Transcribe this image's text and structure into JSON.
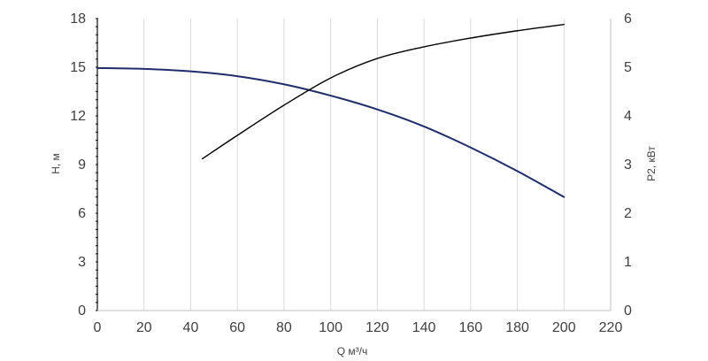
{
  "chart_data": {
    "type": "line",
    "xlabel": "Q м³/ч",
    "ylabel_left": "H, м",
    "ylabel_right": "P2, кВт",
    "xlim": [
      0,
      220
    ],
    "ylim_left": [
      0,
      18
    ],
    "ylim_right": [
      0,
      6
    ],
    "x_ticks": [
      "0",
      "20",
      "40",
      "60",
      "80",
      "100",
      "120",
      "140",
      "160",
      "180",
      "200",
      "220"
    ],
    "y_left_ticks": [
      "0",
      "3",
      "6",
      "9",
      "12",
      "15",
      "18"
    ],
    "y_right_ticks": [
      "0",
      "1",
      "2",
      "3",
      "4",
      "5",
      "6"
    ],
    "grid": "vertical",
    "series": [
      {
        "axis": "left",
        "color": "#1f2d6b",
        "x": [
          0,
          20,
          40,
          60,
          80,
          100,
          120,
          140,
          160,
          180,
          200
        ],
        "values": [
          14.95,
          14.9,
          14.75,
          14.45,
          13.95,
          13.25,
          12.4,
          11.35,
          10.05,
          8.6,
          7.0
        ]
      },
      {
        "axis": "right",
        "color": "#000000",
        "x": [
          45,
          60,
          80,
          100,
          120,
          140,
          160,
          180,
          200
        ],
        "values": [
          3.12,
          3.6,
          4.22,
          4.78,
          5.18,
          5.42,
          5.6,
          5.75,
          5.88
        ]
      }
    ]
  }
}
